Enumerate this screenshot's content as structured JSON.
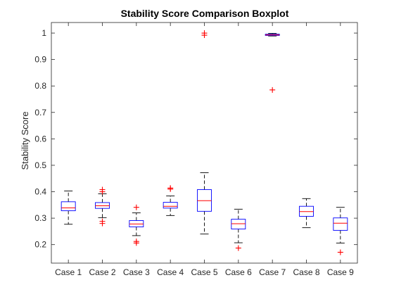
{
  "chart_data": {
    "type": "boxplot",
    "title": "Stability Score Comparison Boxplot",
    "xlabel": "",
    "ylabel": "Stability Score",
    "ylim": [
      0.13,
      1.04
    ],
    "yticks": [
      0.2,
      0.3,
      0.4,
      0.5,
      0.6,
      0.7,
      0.8,
      0.9,
      1
    ],
    "ytick_labels": [
      "0.2",
      "0.3",
      "0.4",
      "0.5",
      "0.6",
      "0.7",
      "0.8",
      "0.9",
      "1"
    ],
    "categories": [
      "Case 1",
      "Case 2",
      "Case 3",
      "Case 4",
      "Case 5",
      "Case 6",
      "Case 7",
      "Case 8",
      "Case 9"
    ],
    "boxes": [
      {
        "whisker_low": 0.277,
        "q1": 0.328,
        "median": 0.339,
        "q3": 0.362,
        "whisker_high": 0.403,
        "outliers": []
      },
      {
        "whisker_low": 0.302,
        "q1": 0.337,
        "median": 0.347,
        "q3": 0.359,
        "whisker_high": 0.392,
        "outliers": [
          0.408,
          0.4,
          0.288,
          0.28
        ]
      },
      {
        "whisker_low": 0.234,
        "q1": 0.267,
        "median": 0.278,
        "q3": 0.291,
        "whisker_high": 0.32,
        "outliers": [
          0.341,
          0.212,
          0.206
        ]
      },
      {
        "whisker_low": 0.31,
        "q1": 0.338,
        "median": 0.345,
        "q3": 0.36,
        "whisker_high": 0.384,
        "outliers": [
          0.414,
          0.41
        ]
      },
      {
        "whisker_low": 0.24,
        "q1": 0.326,
        "median": 0.366,
        "q3": 0.408,
        "whisker_high": 0.472,
        "outliers": [
          1.0,
          0.992
        ]
      },
      {
        "whisker_low": 0.207,
        "q1": 0.259,
        "median": 0.279,
        "q3": 0.296,
        "whisker_high": 0.334,
        "outliers": [
          0.187
        ]
      },
      {
        "whisker_low": 0.989,
        "q1": 0.991,
        "median": 0.993,
        "q3": 0.996,
        "whisker_high": 0.999,
        "outliers": [
          0.785
        ]
      },
      {
        "whisker_low": 0.264,
        "q1": 0.307,
        "median": 0.325,
        "q3": 0.345,
        "whisker_high": 0.374,
        "outliers": []
      },
      {
        "whisker_low": 0.206,
        "q1": 0.254,
        "median": 0.281,
        "q3": 0.301,
        "whisker_high": 0.341,
        "outliers": [
          0.171
        ]
      }
    ],
    "colors": {
      "box": "#0000ff",
      "median": "#ff0000",
      "whisker": "#000000",
      "outlier": "#ff0000",
      "axes": "#262626"
    },
    "grid": false,
    "legend": "none"
  }
}
